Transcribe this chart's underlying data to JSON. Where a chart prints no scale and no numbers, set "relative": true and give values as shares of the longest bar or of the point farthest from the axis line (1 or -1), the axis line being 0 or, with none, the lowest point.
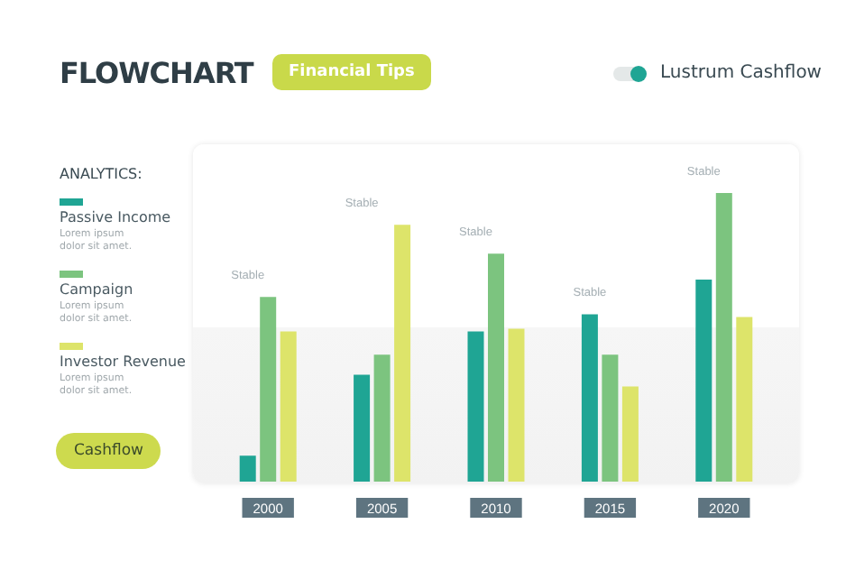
{
  "chart_data": {
    "type": "bar",
    "title": "FLOWCHART",
    "legend_title": "ANALYTICS:",
    "relative": true,
    "legend": "left",
    "categories": [
      "2000",
      "2005",
      "2010",
      "2015",
      "2020"
    ],
    "series": [
      {
        "name": "Passive Income",
        "color": "#1fa594",
        "values": [
          0.09,
          0.37,
          0.52,
          0.58,
          0.7
        ]
      },
      {
        "name": "Campaign",
        "color": "#7cc47f",
        "values": [
          0.64,
          0.44,
          0.79,
          0.44,
          1.0
        ]
      },
      {
        "name": "Investor Revenue",
        "color": "#dde46a",
        "values": [
          0.52,
          0.89,
          0.53,
          0.33,
          0.57
        ]
      }
    ],
    "annotations": [
      "Financial Tips",
      "Lustrum Cashflow",
      "Lorem ipsum dolor sit amet.",
      "Lorem ipsum dolor sit amet.",
      "Lorem ipsum dolor sit amet.",
      "Cashflow",
      "Stable",
      "Stable",
      "Stable",
      "Stable",
      "Stable"
    ]
  }
}
